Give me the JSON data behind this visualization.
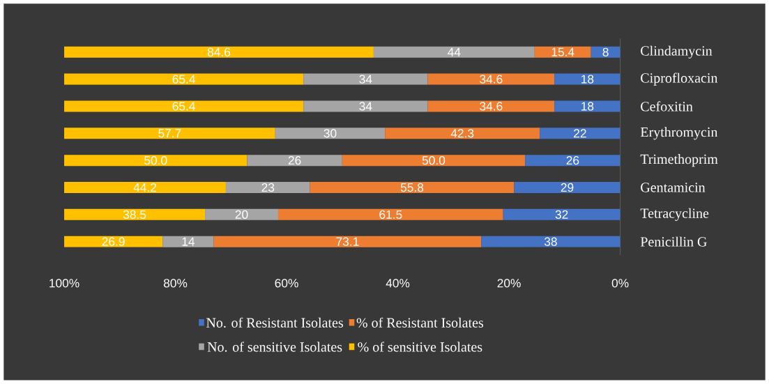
{
  "chart_data": {
    "type": "bar",
    "orientation": "horizontal",
    "stacked": true,
    "legend": "bottom",
    "categories": [
      "Clindamycin",
      "Ciprofloxacin",
      "Cefoxitin",
      "Erythromycin",
      "Trimethoprim",
      "Gentamicin",
      "Tetracycline",
      "Penicillin G"
    ],
    "series": [
      {
        "name": "No. of Resistant Isolates",
        "color": "#4472c4",
        "values": [
          8,
          18,
          18,
          22,
          26,
          29,
          32,
          38
        ],
        "value_labels": [
          "8",
          "18",
          "18",
          "22",
          "26",
          "29",
          "32",
          "38"
        ]
      },
      {
        "name": "% of Resistant Isolates",
        "color": "#ed7d31",
        "values": [
          15.4,
          34.6,
          34.6,
          42.3,
          50.0,
          55.8,
          61.5,
          73.1
        ],
        "value_labels": [
          "15.4",
          "34.6",
          "34.6",
          "42.3",
          "50.0",
          "55.8",
          "61.5",
          "73.1"
        ]
      },
      {
        "name": "No. of sensitive  Isolates",
        "color": "#a5a5a5",
        "values": [
          44,
          34,
          34,
          30,
          26,
          23,
          20,
          14
        ],
        "value_labels": [
          "44",
          "34",
          "34",
          "30",
          "26",
          "23",
          "20",
          "14"
        ]
      },
      {
        "name": "% of sensitive  Isolates",
        "color": "#ffc000",
        "values": [
          84.6,
          65.4,
          65.4,
          57.7,
          50.0,
          44.2,
          38.5,
          26.9
        ],
        "value_labels": [
          "84.6",
          "65.4",
          "65.4",
          "57.7",
          "50.0",
          "44.2",
          "38.5",
          "26.9"
        ]
      }
    ],
    "xlim": [
      152,
      0
    ],
    "x2lim": [
      100,
      0
    ],
    "x2ticks": [
      {
        "value": 100,
        "label": "100%"
      },
      {
        "value": 80,
        "label": "80%"
      },
      {
        "value": 60,
        "label": "60%"
      },
      {
        "value": 40,
        "label": "40%"
      },
      {
        "value": 20,
        "label": "20%"
      },
      {
        "value": 0,
        "label": "0%"
      }
    ]
  }
}
